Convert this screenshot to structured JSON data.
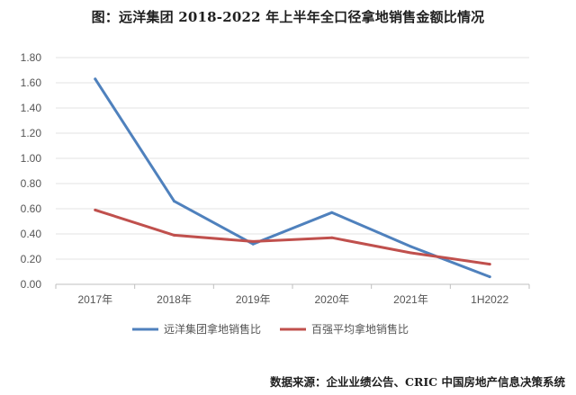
{
  "title": "图：远洋集团 2018-2022 年上半年全口径拿地销售金额比情况",
  "source": "数据来源：企业业绩公告、CRIC 中国房地产信息决策系统",
  "chart_data": {
    "type": "line",
    "title": "图：远洋集团 2018-2022 年上半年全口径拿地销售金额比情况",
    "categories": [
      "2017年",
      "2018年",
      "2019年",
      "2020年",
      "2021年",
      "1H2022"
    ],
    "series": [
      {
        "name": "远洋集团拿地销售比",
        "color": "#4f81bd",
        "values": [
          1.63,
          0.66,
          0.32,
          0.57,
          0.3,
          0.06
        ]
      },
      {
        "name": "百强平均拿地销售比",
        "color": "#c0504d",
        "values": [
          0.59,
          0.39,
          0.34,
          0.37,
          0.25,
          0.16
        ]
      }
    ],
    "yticks": [
      "0.00",
      "0.20",
      "0.40",
      "0.60",
      "0.80",
      "1.00",
      "1.20",
      "1.40",
      "1.60",
      "1.80"
    ],
    "ylim": [
      0,
      1.8
    ],
    "grid": true,
    "legend_position": "bottom"
  }
}
